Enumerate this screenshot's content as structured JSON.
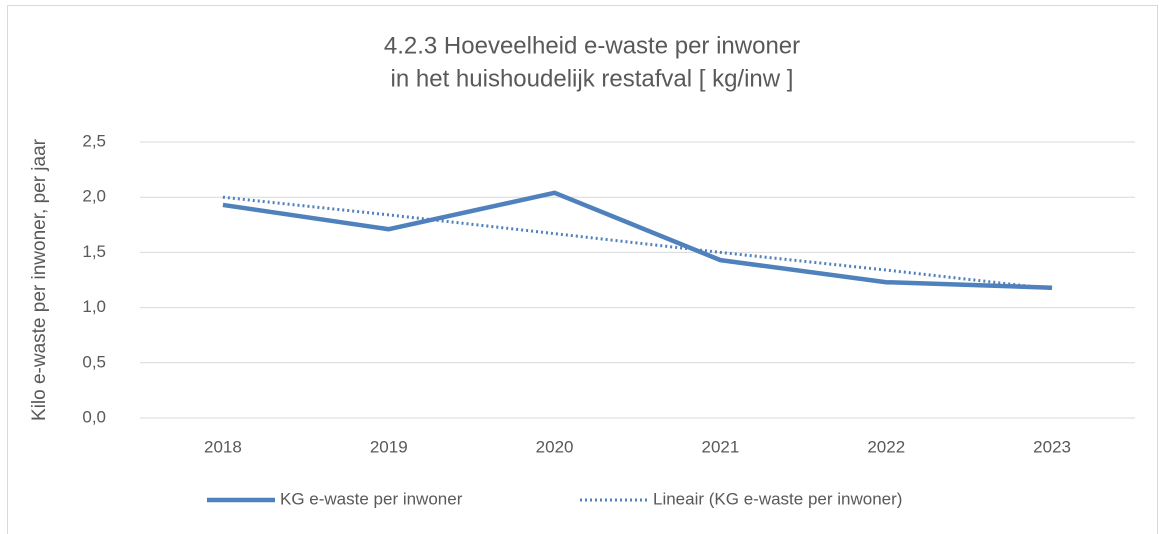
{
  "chart_data": {
    "type": "line",
    "title": [
      "4.2.3 Hoeveelheid e-waste per inwoner",
      "in het huishoudelijk restafval [ kg/inw ]"
    ],
    "y_label": "Kilo e-waste per inwoner, per jaar",
    "categories": [
      "2018",
      "2019",
      "2020",
      "2021",
      "2022",
      "2023"
    ],
    "series": [
      {
        "name": "KG e-waste per inwoner",
        "color": "#4f81bd",
        "style": "solid",
        "values": [
          1.93,
          1.71,
          2.04,
          1.43,
          1.23,
          1.18
        ]
      },
      {
        "name": "Lineair (KG e-waste per inwoner)",
        "color": "#4f81bd",
        "style": "dotted",
        "values": [
          2.0,
          1.84,
          1.67,
          1.5,
          1.34,
          1.17
        ]
      }
    ],
    "ylim": [
      0,
      2.5
    ],
    "yticks": [
      {
        "value": 0,
        "label": "0,0"
      },
      {
        "value": 0.5,
        "label": "0,5"
      },
      {
        "value": 1,
        "label": "1,0"
      },
      {
        "value": 1.5,
        "label": "1,5"
      },
      {
        "value": 2,
        "label": "2,0"
      },
      {
        "value": 2.5,
        "label": "2,5"
      }
    ],
    "grid": true,
    "legend": "bottom"
  }
}
